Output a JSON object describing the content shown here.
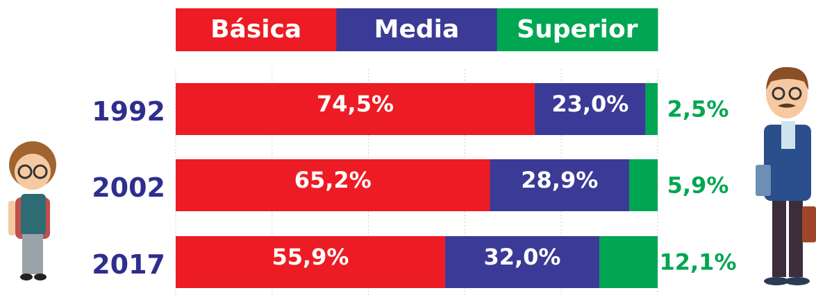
{
  "chart_data": {
    "type": "stacked-bar-horizontal",
    "categories": [
      "1992",
      "2002",
      "2017"
    ],
    "series": [
      {
        "name": "Básica",
        "color": "#ed1c24",
        "values": [
          74.5,
          65.2,
          55.9
        ],
        "value_labels": [
          "74,5%",
          "65,2%",
          "55,9%"
        ]
      },
      {
        "name": "Media",
        "color": "#3b3a96",
        "values": [
          23.0,
          28.9,
          32.0
        ],
        "value_labels": [
          "23,0%",
          "28,9%",
          "32,0%"
        ]
      },
      {
        "name": "Superior",
        "color": "#00a651",
        "values": [
          2.5,
          5.9,
          12.1
        ],
        "value_labels": [
          "2,5%",
          "5,9%",
          "12,1%"
        ]
      }
    ],
    "xlim": [
      0,
      100
    ],
    "xticks": [
      0,
      20,
      40,
      60,
      80,
      100
    ],
    "grid": true
  }
}
